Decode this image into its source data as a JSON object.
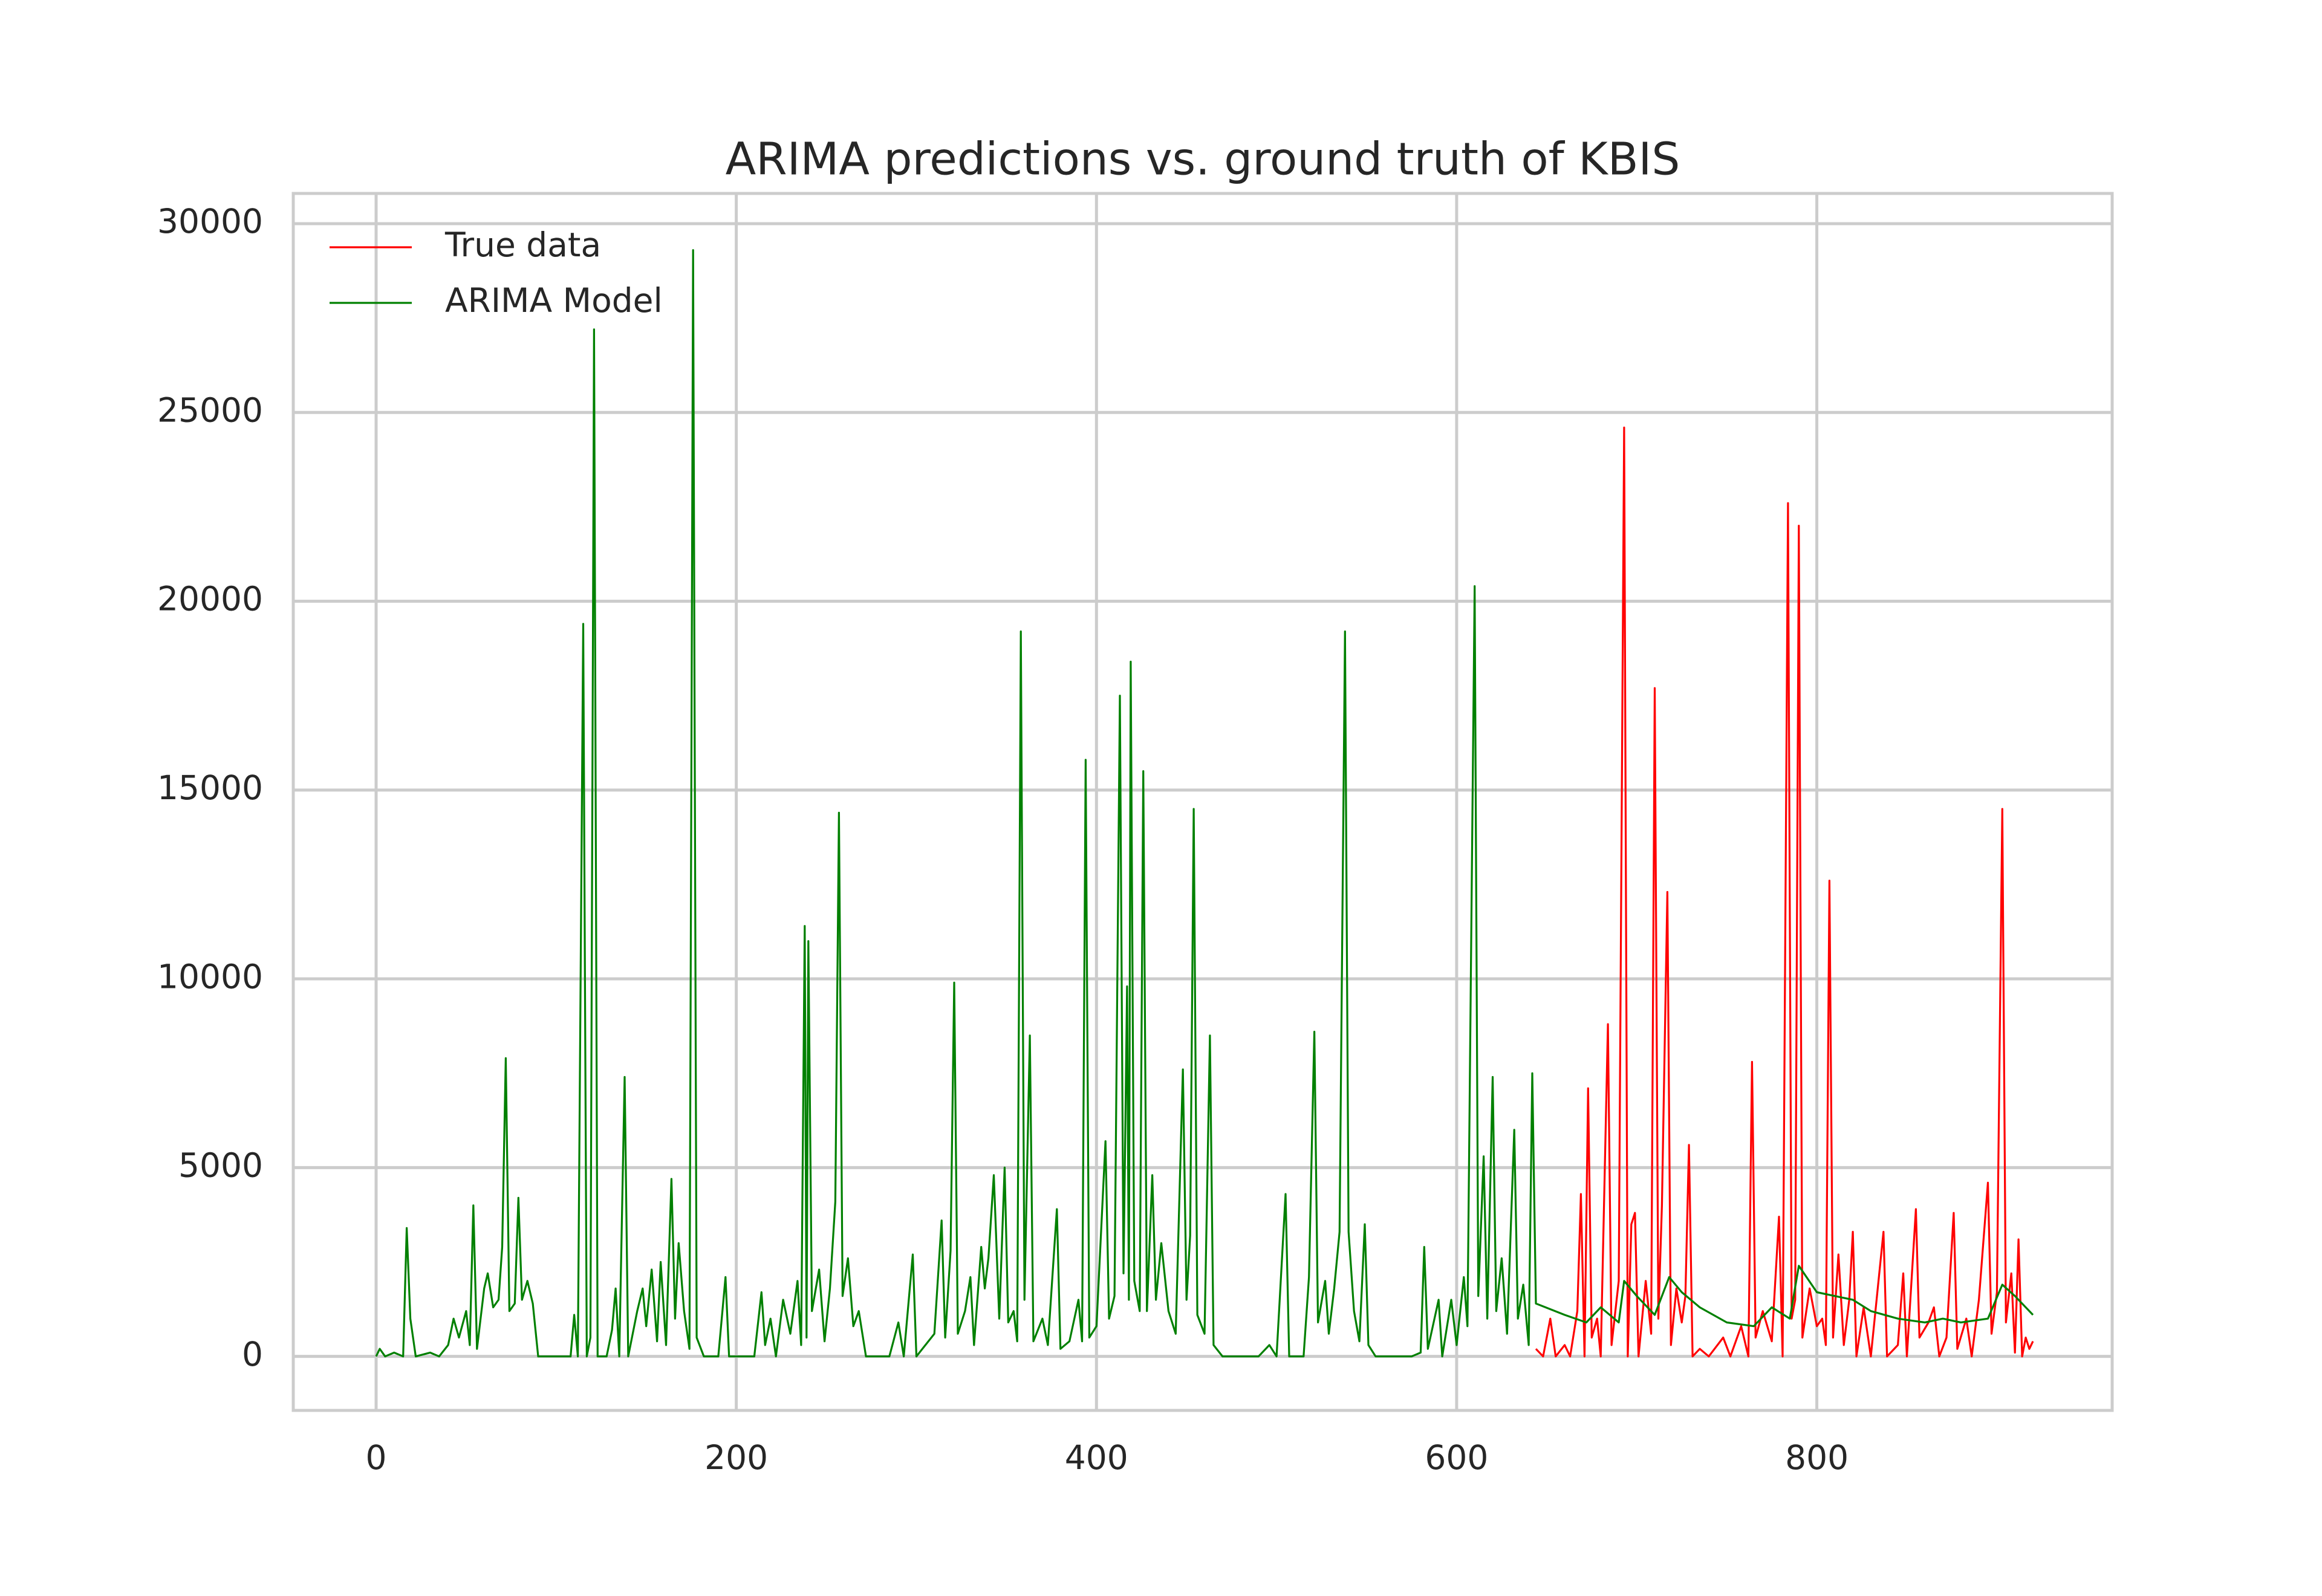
{
  "chart_data": {
    "type": "line",
    "title": "ARIMA predictions vs. ground truth of KBIS",
    "xlim": [
      -46,
      964
    ],
    "ylim": [
      -1430,
      30800
    ],
    "xticks": [
      0,
      200,
      400,
      600,
      800
    ],
    "yticks": [
      0,
      5000,
      10000,
      15000,
      20000,
      25000,
      30000
    ],
    "grid": true,
    "legend": "upper left",
    "series": [
      {
        "name": "True data",
        "color": "#ff0000",
        "x": [
          644,
          648,
          652,
          655,
          660,
          663,
          667,
          669,
          671,
          673,
          675,
          678,
          680,
          684,
          686,
          690,
          693,
          695,
          697,
          699,
          701,
          705,
          708,
          710,
          712,
          714,
          717,
          719,
          722,
          725,
          727,
          729,
          731,
          735,
          740,
          748,
          752,
          758,
          762,
          764,
          766,
          770,
          775,
          779,
          781,
          784,
          786,
          788,
          790,
          792,
          796,
          800,
          803,
          805,
          807,
          809,
          812,
          815,
          818,
          820,
          822,
          826,
          830,
          837,
          839,
          845,
          848,
          850,
          855,
          857,
          862,
          865,
          868,
          872,
          876,
          878,
          883,
          886,
          890,
          895,
          897,
          900,
          903,
          905,
          908,
          910,
          912,
          914,
          916,
          918,
          920
        ],
        "values": [
          200,
          0,
          1000,
          0,
          300,
          0,
          1200,
          4300,
          0,
          7100,
          500,
          1000,
          0,
          8800,
          300,
          2000,
          24600,
          0,
          3500,
          3800,
          0,
          2000,
          600,
          17700,
          1000,
          4000,
          12300,
          300,
          1800,
          900,
          1600,
          5600,
          0,
          200,
          0,
          500,
          0,
          800,
          0,
          7800,
          500,
          1200,
          400,
          3700,
          0,
          22600,
          1000,
          1500,
          22000,
          500,
          1800,
          800,
          1000,
          300,
          12600,
          500,
          2700,
          300,
          1500,
          3300,
          0,
          1300,
          0,
          3300,
          0,
          300,
          2200,
          0,
          3900,
          500,
          900,
          1300,
          0,
          500,
          3800,
          200,
          1000,
          0,
          1500,
          4600,
          600,
          1700,
          14500,
          900,
          2200,
          100,
          3100,
          0,
          500,
          200,
          400
        ]
      },
      {
        "name": "ARIMA Model",
        "color": "#008000",
        "x": [
          0,
          2,
          5,
          10,
          15,
          17,
          19,
          22,
          30,
          35,
          40,
          43,
          46,
          50,
          52,
          54,
          56,
          60,
          62,
          65,
          68,
          70,
          72,
          74,
          77,
          79,
          81,
          84,
          87,
          90,
          100,
          108,
          110,
          112,
          115,
          117,
          119,
          121,
          123,
          128,
          131,
          133,
          135,
          138,
          140,
          145,
          148,
          150,
          153,
          156,
          158,
          161,
          164,
          166,
          168,
          171,
          174,
          176,
          178,
          182,
          190,
          194,
          196,
          210,
          214,
          216,
          219,
          222,
          226,
          230,
          234,
          236,
          238,
          239,
          240,
          242,
          246,
          249,
          252,
          255,
          257,
          259,
          262,
          265,
          268,
          272,
          285,
          290,
          293,
          298,
          300,
          310,
          314,
          316,
          319,
          321,
          323,
          327,
          330,
          332,
          336,
          338,
          340,
          343,
          346,
          349,
          351,
          354,
          356,
          358,
          360,
          363,
          365,
          370,
          373,
          378,
          380,
          385,
          390,
          392,
          394,
          396,
          400,
          405,
          407,
          410,
          413,
          415,
          417,
          418,
          419,
          421,
          424,
          426,
          428,
          431,
          433,
          436,
          440,
          444,
          448,
          450,
          452,
          454,
          456,
          460,
          463,
          465,
          470,
          480,
          490,
          496,
          500,
          505,
          507,
          515,
          518,
          521,
          523,
          527,
          529,
          532,
          535,
          538,
          540,
          543,
          546,
          549,
          551,
          555,
          565,
          575,
          580,
          582,
          584,
          590,
          592,
          597,
          600,
          604,
          606,
          610,
          612,
          615,
          617,
          620,
          622,
          625,
          628,
          632,
          634,
          637,
          640,
          642,
          644,
          660,
          672,
          680,
          690,
          693,
          700,
          710,
          718,
          725,
          735,
          750,
          765,
          775,
          785,
          790,
          800,
          810,
          820,
          830,
          845,
          860,
          870,
          880,
          895,
          903,
          910,
          920
        ],
        "values": [
          0,
          200,
          0,
          100,
          0,
          3400,
          1000,
          0,
          100,
          0,
          300,
          1000,
          500,
          1200,
          300,
          4000,
          200,
          1800,
          2200,
          1300,
          1500,
          2900,
          7900,
          1200,
          1400,
          4200,
          1500,
          2000,
          1400,
          0,
          0,
          0,
          1100,
          0,
          19400,
          0,
          500,
          27200,
          0,
          0,
          700,
          1800,
          0,
          7400,
          0,
          1200,
          1800,
          800,
          2300,
          400,
          2500,
          300,
          4700,
          1000,
          3000,
          1200,
          200,
          29300,
          500,
          0,
          0,
          2100,
          0,
          0,
          1700,
          300,
          1000,
          0,
          1500,
          600,
          2000,
          300,
          11400,
          500,
          11000,
          1200,
          2300,
          400,
          1800,
          4100,
          14400,
          1600,
          2600,
          800,
          1200,
          0,
          0,
          900,
          0,
          2700,
          0,
          600,
          3600,
          500,
          2800,
          9900,
          600,
          1200,
          2100,
          300,
          2900,
          1800,
          2600,
          4800,
          1000,
          5000,
          900,
          1200,
          400,
          19200,
          1500,
          8500,
          400,
          1000,
          300,
          3900,
          200,
          400,
          1500,
          400,
          15800,
          500,
          800,
          5700,
          1000,
          1600,
          17500,
          2200,
          9800,
          1500,
          18400,
          2000,
          1200,
          15500,
          1200,
          4800,
          1500,
          3000,
          1200,
          600,
          7600,
          1500,
          3200,
          14500,
          1100,
          600,
          8500,
          300,
          0,
          0,
          0,
          300,
          0,
          4300,
          0,
          0,
          2100,
          8600,
          900,
          2000,
          600,
          1800,
          3300,
          19200,
          3300,
          1200,
          400,
          3500,
          300,
          0,
          0,
          0,
          100,
          2900,
          200,
          1500,
          0,
          1500,
          300,
          2100,
          800,
          20400,
          1600,
          5300,
          1000,
          7400,
          1200,
          2600,
          600,
          6000,
          1000,
          1900,
          300,
          7500,
          1400,
          1100,
          900,
          1300,
          900,
          2000,
          1600,
          1100,
          2100,
          1700,
          1300,
          900,
          800,
          1300,
          1000,
          2400,
          1700,
          1600,
          1500,
          1200,
          1000,
          900,
          1000,
          900,
          1000,
          1900,
          1600,
          1100
        ]
      }
    ]
  }
}
